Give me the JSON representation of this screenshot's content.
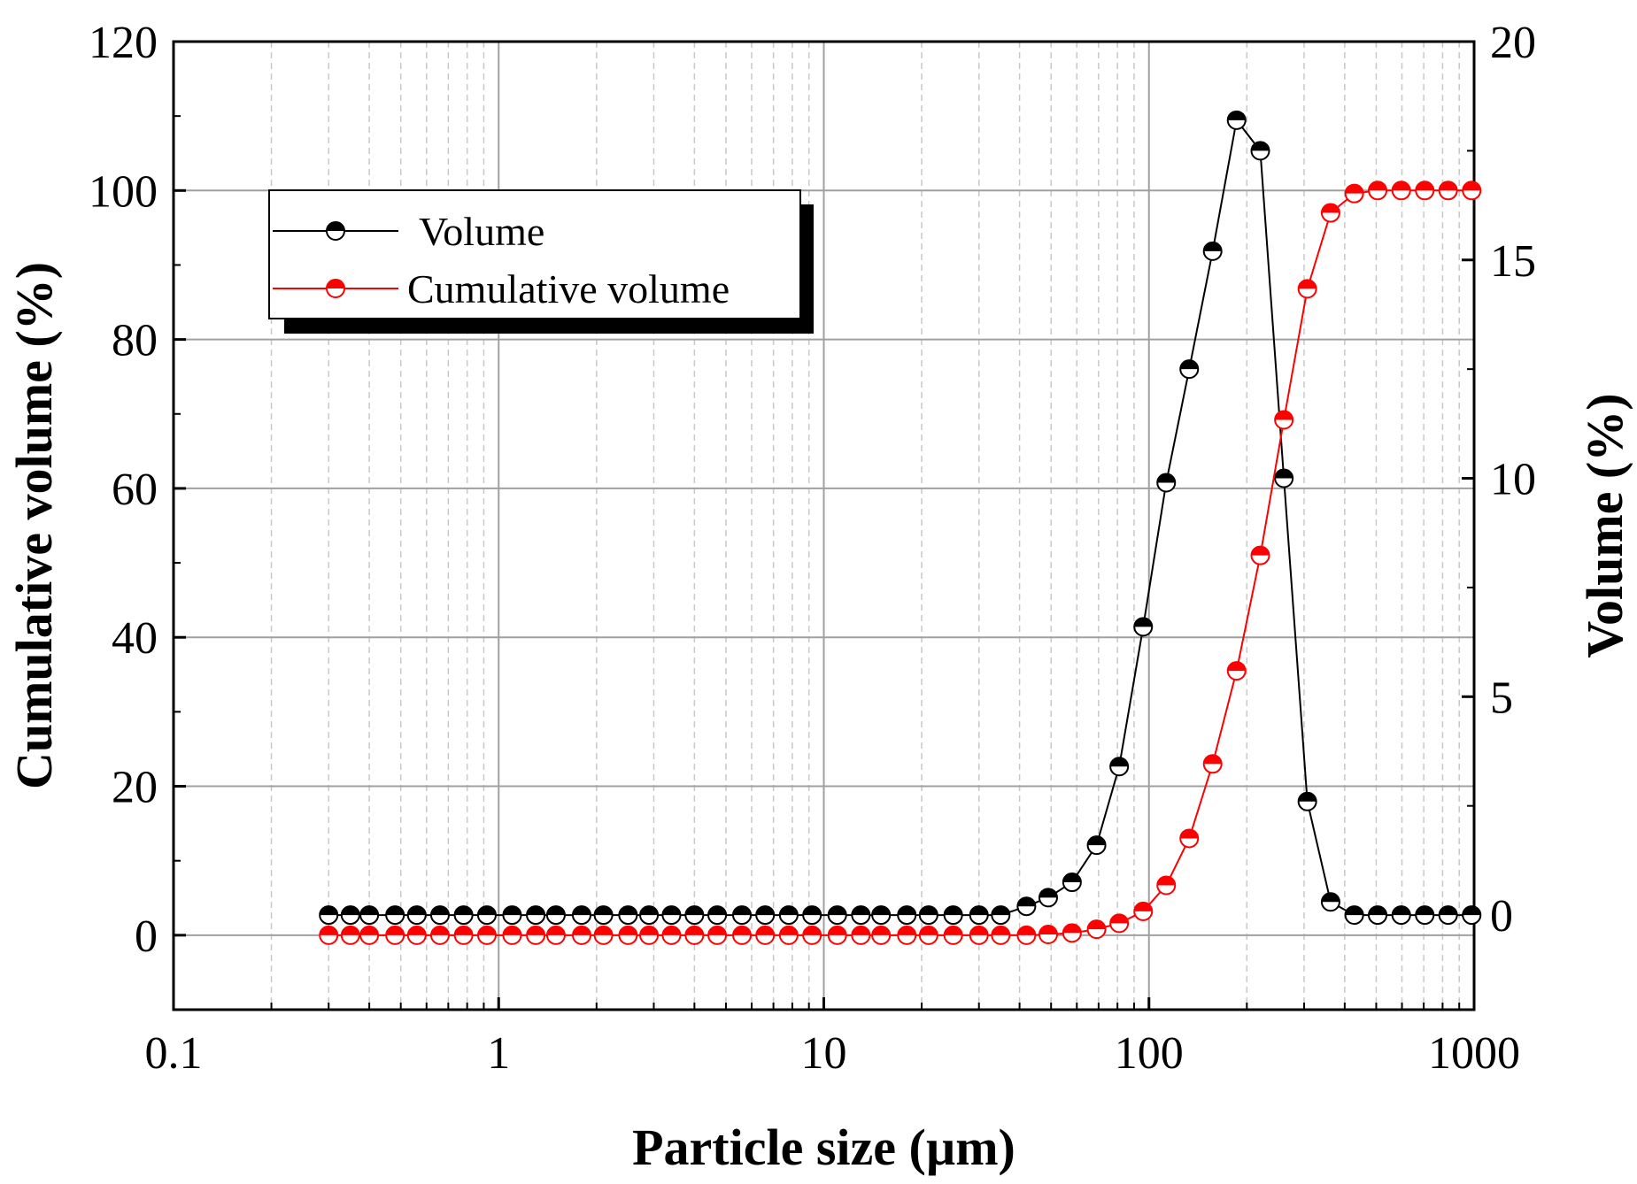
{
  "chart_data": {
    "type": "line",
    "title": "",
    "xlabel": "Particle size (µm)",
    "ylabel_left": "Cumulative volume (%)",
    "ylabel_right": "Volume (%)",
    "x_scale": "log",
    "xlim": [
      0.1,
      1000
    ],
    "ylim_left": [
      -10,
      120
    ],
    "ylim_right": [
      -2.1667,
      20
    ],
    "x_ticks": [
      0.1,
      1,
      10,
      100,
      1000
    ],
    "x_tick_labels": [
      "0.1",
      "1",
      "10",
      "100",
      "1000"
    ],
    "y_left_ticks": [
      0,
      20,
      40,
      60,
      80,
      100,
      120
    ],
    "y_left_tick_labels": [
      "0",
      "20",
      "40",
      "60",
      "80",
      "100",
      "120"
    ],
    "y_right_ticks": [
      0,
      5,
      10,
      15,
      20
    ],
    "y_right_tick_labels": [
      "0",
      "5",
      "10",
      "15",
      "20"
    ],
    "grid": true,
    "legend_position": "top-left",
    "x": [
      0.3,
      0.35,
      0.4,
      0.48,
      0.56,
      0.66,
      0.78,
      0.92,
      1.1,
      1.3,
      1.5,
      1.8,
      2.1,
      2.5,
      2.9,
      3.4,
      4.0,
      4.7,
      5.6,
      6.6,
      7.8,
      9.2,
      11,
      13,
      15,
      18,
      21,
      25,
      30,
      35,
      42,
      49,
      58,
      69,
      81,
      96,
      113,
      133,
      157,
      186,
      220,
      260,
      307,
      362,
      428,
      505,
      597,
      705,
      832,
      983
    ],
    "series": [
      {
        "name": "Volume",
        "axis": "right",
        "color": "#000000",
        "values": [
          0,
          0,
          0,
          0,
          0,
          0,
          0,
          0,
          0,
          0,
          0,
          0,
          0,
          0,
          0,
          0,
          0,
          0,
          0,
          0,
          0,
          0,
          0,
          0,
          0,
          0,
          0,
          0,
          0,
          0,
          0.2,
          0.4,
          0.75,
          1.6,
          3.4,
          6.6,
          9.9,
          12.5,
          15.2,
          18.2,
          17.5,
          10.0,
          2.6,
          0.3,
          0,
          0,
          0,
          0,
          0,
          0
        ]
      },
      {
        "name": "Cumulative volume",
        "axis": "left",
        "color": "#ff0000",
        "values": [
          0,
          0,
          0,
          0,
          0,
          0,
          0,
          0,
          0,
          0,
          0,
          0,
          0,
          0,
          0,
          0,
          0,
          0,
          0,
          0,
          0,
          0,
          0,
          0,
          0,
          0,
          0,
          0,
          0,
          0,
          0,
          0.1,
          0.3,
          0.8,
          1.6,
          3.2,
          6.7,
          13.0,
          23.0,
          35.5,
          51.0,
          69.2,
          86.8,
          97.0,
          99.6,
          100,
          100,
          100,
          100,
          100
        ]
      }
    ]
  }
}
